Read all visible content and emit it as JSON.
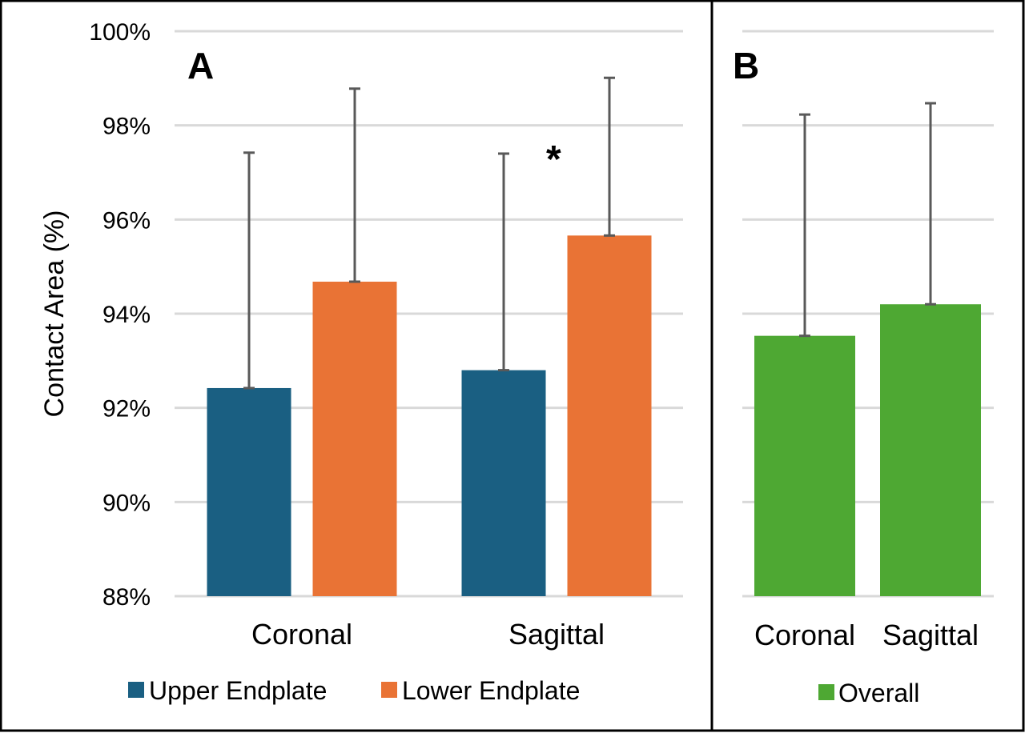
{
  "chart_data": [
    {
      "type": "bar",
      "panel_label": "A",
      "ylabel": "Contact Area (%)",
      "ylim": [
        88,
        100
      ],
      "yticks": [
        "88%",
        "90%",
        "92%",
        "94%",
        "96%",
        "98%",
        "100%"
      ],
      "categories": [
        "Coronal",
        "Sagittal"
      ],
      "series": [
        {
          "name": "Upper Endplate",
          "color": "#1a5f82",
          "values": [
            92.42,
            92.8
          ],
          "error_upper": [
            5.0,
            4.6
          ]
        },
        {
          "name": "Lower Endplate",
          "color": "#e97335",
          "values": [
            94.68,
            95.66
          ],
          "error_upper": [
            4.1,
            3.35
          ]
        }
      ],
      "annotation": "*",
      "grid": true,
      "legend_position": "bottom"
    },
    {
      "type": "bar",
      "panel_label": "B",
      "ylim": [
        88,
        100
      ],
      "categories": [
        "Coronal",
        "Sagittal"
      ],
      "series": [
        {
          "name": "Overall",
          "color": "#4ea833",
          "values": [
            93.53,
            94.2
          ],
          "error_upper": [
            4.7,
            4.27
          ]
        }
      ],
      "grid": true,
      "legend_position": "bottom"
    }
  ]
}
